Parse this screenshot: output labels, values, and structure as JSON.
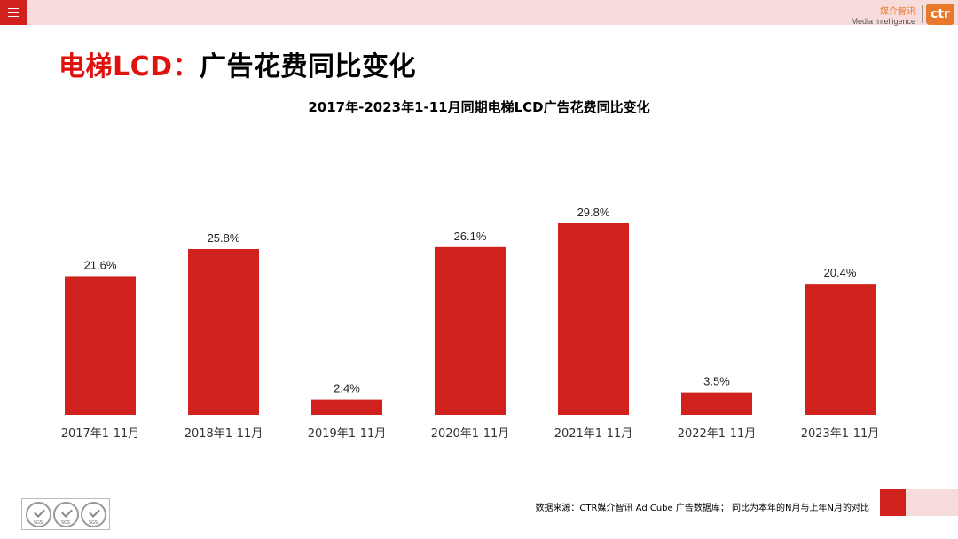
{
  "header": {
    "menu_icon": "hamburger-icon",
    "brand_cn": "媒介智讯",
    "brand_en": "Media Intelligence",
    "logo_text": "ctr",
    "logo_mark": "®"
  },
  "page_title": {
    "red": "电梯LCD：",
    "black": "广告花费同比变化"
  },
  "footer": {
    "source_note": "数据来源：CTR媒介智讯 Ad Cube 广告数据库；  同比为本年的N月与上年N月的对比",
    "cert_label": "SGS"
  },
  "colors": {
    "bar": "#d0211c",
    "accent_pink": "#f8dcdc",
    "brand_orange": "#e8782a"
  },
  "chart_data": {
    "type": "bar",
    "title": "2017年-2023年1-11月同期电梯LCD广告花费同比变化",
    "categories": [
      "2017年1-11月",
      "2018年1-11月",
      "2019年1-11月",
      "2020年1-11月",
      "2021年1-11月",
      "2022年1-11月",
      "2023年1-11月"
    ],
    "values": [
      21.6,
      25.8,
      2.4,
      26.1,
      29.8,
      3.5,
      20.4
    ],
    "value_labels": [
      "21.6%",
      "25.8%",
      "2.4%",
      "26.1%",
      "29.8%",
      "3.5%",
      "20.4%"
    ],
    "xlabel": "",
    "ylabel": "",
    "ylim": [
      0,
      30
    ],
    "grid": false,
    "legend": "none"
  }
}
